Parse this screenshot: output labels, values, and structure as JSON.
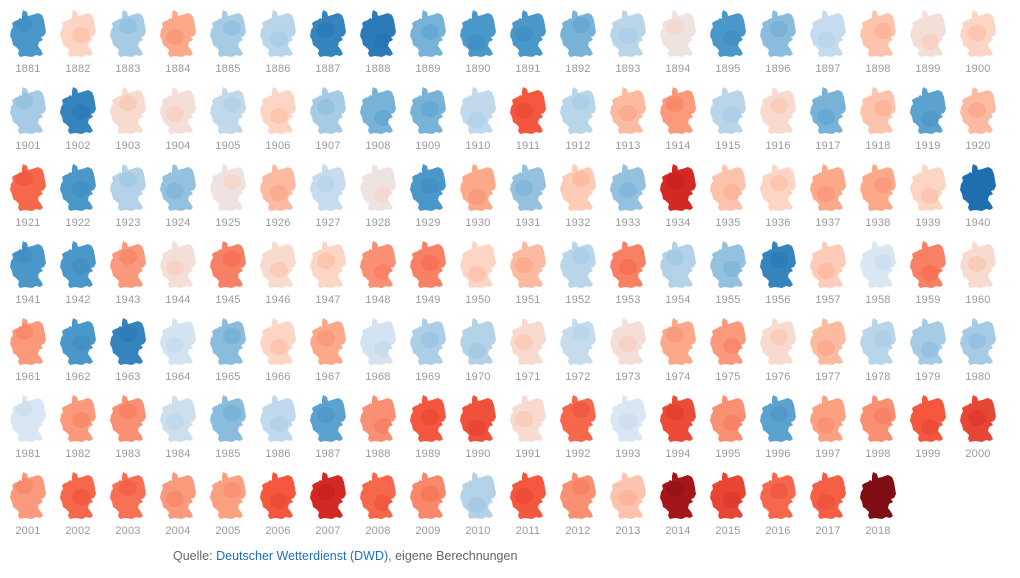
{
  "chart_data": {
    "type": "heatmap",
    "description_scale": "blue = cooler, red = warmer",
    "color_scale": {
      "stops": [
        -3,
        -2,
        -1,
        0,
        0.5,
        1,
        2,
        3,
        4
      ],
      "colors": [
        "#1f6fb0",
        "#4a98c9",
        "#a6cbe5",
        "#e6edf6",
        "#fdd5c4",
        "#fca98a",
        "#f4573d",
        "#cb1e1e",
        "#7f0d16"
      ]
    },
    "years": [
      1881,
      1882,
      1883,
      1884,
      1885,
      1886,
      1887,
      1888,
      1889,
      1890,
      1891,
      1892,
      1893,
      1894,
      1895,
      1896,
      1897,
      1898,
      1899,
      1900,
      1901,
      1902,
      1903,
      1904,
      1905,
      1906,
      1907,
      1908,
      1909,
      1910,
      1911,
      1912,
      1913,
      1914,
      1915,
      1916,
      1917,
      1918,
      1919,
      1920,
      1921,
      1922,
      1923,
      1924,
      1925,
      1926,
      1927,
      1928,
      1929,
      1930,
      1931,
      1932,
      1933,
      1934,
      1935,
      1936,
      1937,
      1938,
      1939,
      1940,
      1941,
      1942,
      1943,
      1944,
      1945,
      1946,
      1947,
      1948,
      1949,
      1950,
      1951,
      1952,
      1953,
      1954,
      1955,
      1956,
      1957,
      1958,
      1959,
      1960,
      1961,
      1962,
      1963,
      1964,
      1965,
      1966,
      1967,
      1968,
      1969,
      1970,
      1971,
      1972,
      1973,
      1974,
      1975,
      1976,
      1977,
      1978,
      1979,
      1980,
      1981,
      1982,
      1983,
      1984,
      1985,
      1986,
      1987,
      1988,
      1989,
      1990,
      1991,
      1992,
      1993,
      1994,
      1995,
      1996,
      1997,
      1998,
      1999,
      2000,
      2001,
      2002,
      2003,
      2004,
      2005,
      2006,
      2007,
      2008,
      2009,
      2010,
      2011,
      2012,
      2013,
      2014,
      2015,
      2016,
      2017,
      2018
    ],
    "values": [
      -2,
      0.5,
      -1,
      1,
      -1,
      -0.7,
      -2.5,
      -2.7,
      -1.5,
      -2,
      -2,
      -1.5,
      -0.7,
      0.2,
      -2,
      -1.3,
      -0.5,
      0.7,
      0.3,
      0.5,
      -1,
      -2.5,
      0.4,
      0.3,
      -0.6,
      0.5,
      -1,
      -1.5,
      -1.5,
      -0.6,
      2,
      -0.7,
      0.8,
      1.2,
      -0.7,
      0.4,
      -1.5,
      0.7,
      -1.8,
      0.8,
      1.8,
      -2,
      -0.8,
      -1.2,
      0.2,
      0.8,
      -0.5,
      0.2,
      -2,
      1,
      -1.2,
      0.6,
      -1.2,
      2.8,
      0.7,
      0.5,
      1,
      1,
      0.5,
      -3,
      -2,
      -2,
      1.2,
      0.3,
      1.5,
      0.4,
      0.5,
      1.3,
      1.5,
      0.5,
      0.8,
      -0.7,
      1.5,
      -0.8,
      -1.2,
      -2.5,
      0.6,
      -0.2,
      1.5,
      0.4,
      1.2,
      -2,
      -2.5,
      -0.3,
      -1.3,
      0.5,
      1,
      -0.3,
      -0.9,
      -0.8,
      0.4,
      -0.5,
      0.3,
      1,
      1.2,
      0.4,
      0.8,
      -0.7,
      -1,
      -1,
      -0.2,
      1.2,
      1.3,
      -0.4,
      -1.3,
      -0.6,
      -1.8,
      1.3,
      2,
      2.1,
      0.4,
      1.8,
      -0.2,
      2.2,
      1.3,
      -1.8,
      1.1,
      1.3,
      2,
      2.3,
      1.2,
      1.8,
      1.7,
      1.2,
      1.1,
      2,
      2.8,
      1.8,
      1.4,
      -0.8,
      2,
      1.3,
      0.7,
      3.5,
      2.3,
      1.8,
      1.9,
      4
    ]
  },
  "source": {
    "prefix": "Quelle: ",
    "link": "Deutscher Wetterdienst (DWD)",
    "suffix": ", eigene Berechnungen"
  }
}
